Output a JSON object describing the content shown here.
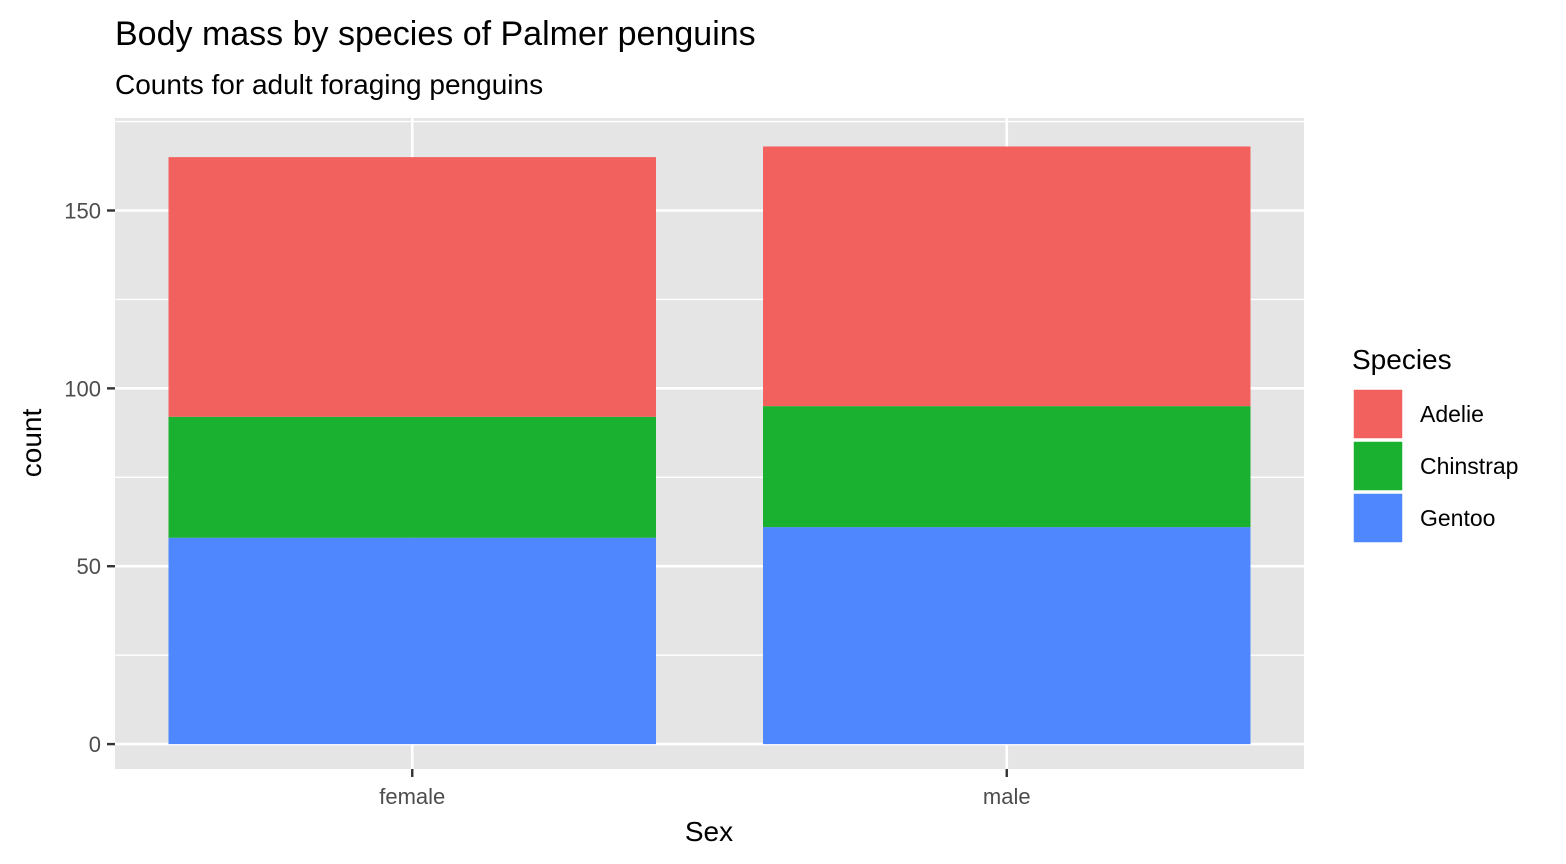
{
  "chart_data": {
    "type": "bar",
    "stacked": true,
    "title": "Body mass by species of Palmer penguins",
    "subtitle": "Counts for adult foraging penguins",
    "xlabel": "Sex",
    "ylabel": "count",
    "categories": [
      "female",
      "male"
    ],
    "series": [
      {
        "name": "Adelie",
        "values": [
          73,
          73
        ],
        "color": "#F2615E"
      },
      {
        "name": "Chinstrap",
        "values": [
          34,
          34
        ],
        "color": "#19B12F"
      },
      {
        "name": "Gentoo",
        "values": [
          58,
          61
        ],
        "color": "#4F87FE"
      }
    ],
    "stack_order_bottom_to_top": [
      "Gentoo",
      "Chinstrap",
      "Adelie"
    ],
    "ylim": [
      -7,
      176
    ],
    "yticks": [
      0,
      50,
      100,
      150
    ],
    "ytick_labels": [
      "0",
      "50",
      "100",
      "150"
    ],
    "minor_yticks": [
      25,
      75,
      125,
      175
    ],
    "grid": true,
    "panel_background": "#E5E5E5",
    "grid_color": "#FFFFFF",
    "legend": {
      "title": "Species",
      "position": "right",
      "items": [
        "Adelie",
        "Chinstrap",
        "Gentoo"
      ]
    }
  }
}
